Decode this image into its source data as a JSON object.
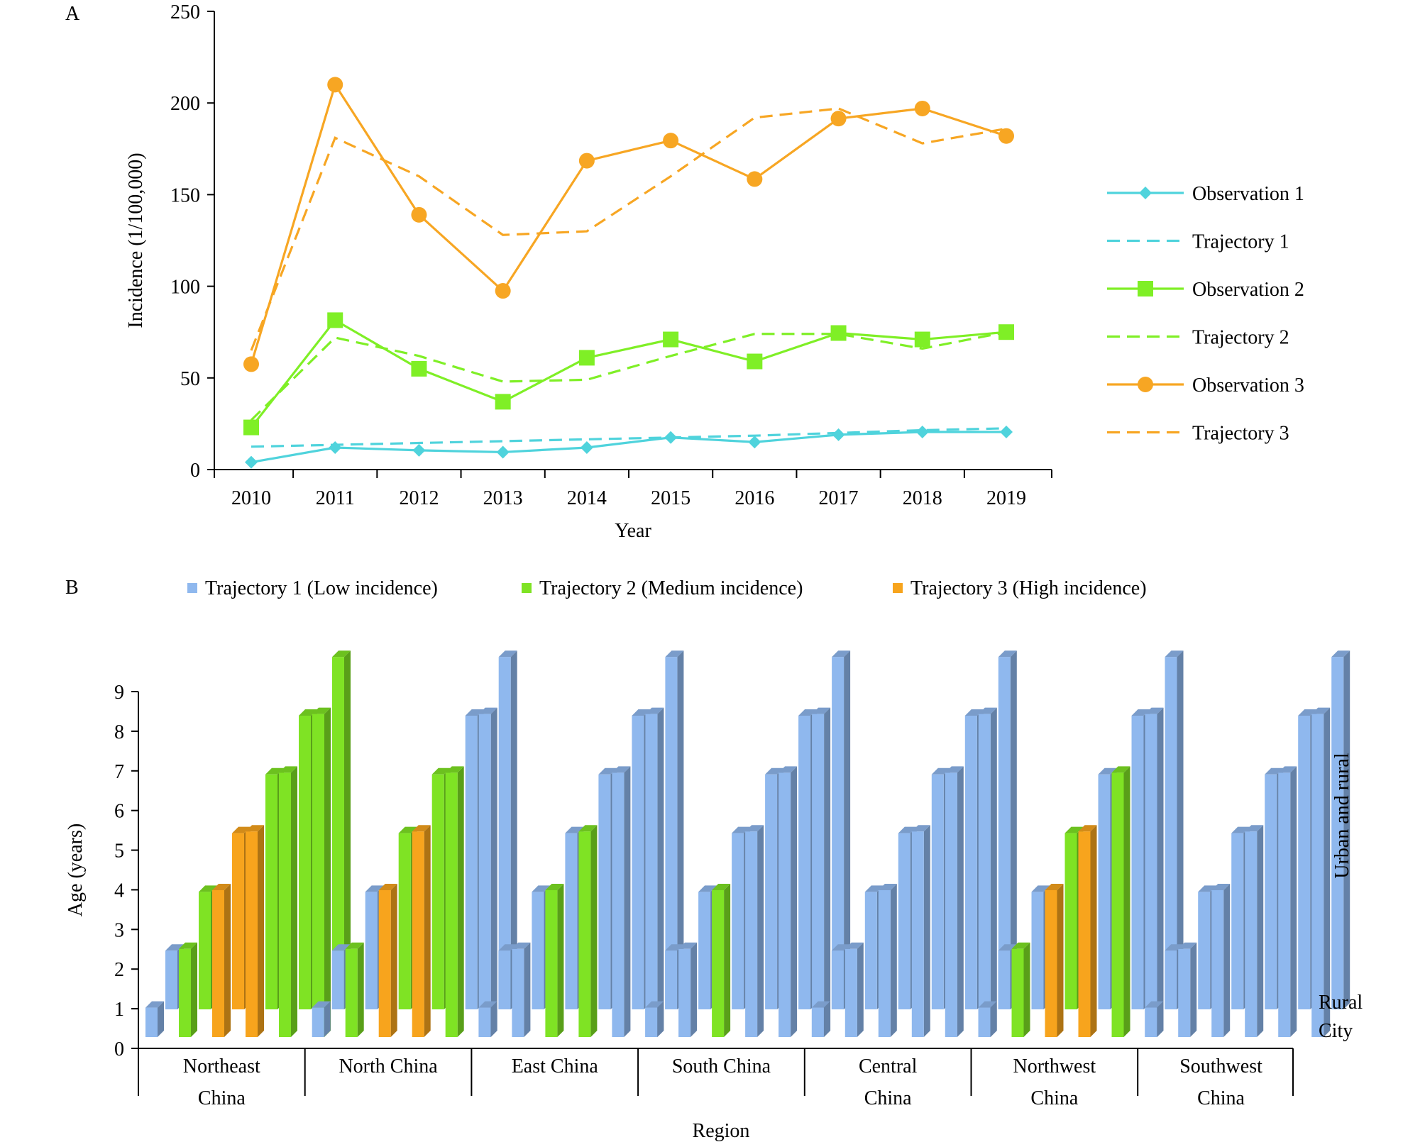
{
  "colors": {
    "trajectory1": "#4fd3dc",
    "trajectory2": "#7fef26",
    "trajectory3": "#f7a623",
    "bar_t1": "#8fb8ee",
    "bar_t2": "#7fe324",
    "bar_t3": "#f7a41d"
  },
  "chart_data": [
    {
      "panel": "A",
      "type": "line",
      "title": "",
      "xlabel": "Year",
      "ylabel": "Incidence (1/100,000)",
      "ylim": [
        0,
        250
      ],
      "yticks": [
        0,
        50,
        100,
        150,
        200,
        250
      ],
      "x": [
        "2010",
        "2011",
        "2012",
        "2013",
        "2014",
        "2015",
        "2016",
        "2017",
        "2018",
        "2019"
      ],
      "legend_position": "right",
      "series": [
        {
          "name": "Observation 1",
          "style": "solid",
          "marker": "diamond",
          "color": "#4fd3dc",
          "values": [
            4,
            12,
            10.5,
            9.5,
            12,
            17.5,
            15,
            19,
            20.5,
            20.5
          ]
        },
        {
          "name": "Trajectory 1",
          "style": "dashed",
          "marker": "none",
          "color": "#4fd3dc",
          "values": [
            12.5,
            13.5,
            14.5,
            15.5,
            16.5,
            17.5,
            18.5,
            20,
            21.5,
            22.5
          ]
        },
        {
          "name": "Observation 2",
          "style": "solid",
          "marker": "square",
          "color": "#7fef26",
          "values": [
            23,
            81.5,
            55,
            37,
            61,
            71,
            59,
            74.5,
            71,
            75
          ]
        },
        {
          "name": "Trajectory 2",
          "style": "dashed",
          "marker": "none",
          "color": "#7fef26",
          "values": [
            27,
            72,
            62,
            48,
            49,
            62,
            74,
            74,
            66,
            75
          ]
        },
        {
          "name": "Observation 3",
          "style": "solid",
          "marker": "circle",
          "color": "#f7a623",
          "values": [
            57.5,
            210,
            139,
            97.5,
            168.5,
            179.5,
            158.5,
            191.5,
            197,
            182
          ]
        },
        {
          "name": "Trajectory 3",
          "style": "dashed",
          "marker": "none",
          "color": "#f7a623",
          "values": [
            65,
            181,
            160,
            128,
            130,
            160,
            192,
            197,
            178,
            186
          ]
        }
      ]
    },
    {
      "panel": "B",
      "type": "bar",
      "title": "",
      "xlabel": "Region",
      "ylabel": "Age (years)",
      "ylim": [
        0,
        9
      ],
      "yticks": [
        0,
        1,
        2,
        3,
        4,
        5,
        6,
        7,
        8,
        9
      ],
      "depth_labels": [
        "Rural",
        "City"
      ],
      "side_label": "Urban and rural",
      "legend_position": "top",
      "legend": [
        {
          "name": "Trajectory 1 (Low incidence)",
          "key": "t1"
        },
        {
          "name": "Trajectory 2 (Medium incidence)",
          "key": "t2"
        },
        {
          "name": "Trajectory 3 (High incidence)",
          "key": "t3"
        }
      ],
      "age_groups_front": [
        1,
        3,
        5,
        7,
        9,
        11
      ],
      "age_groups_back": [
        2,
        4,
        6,
        8,
        10,
        12
      ],
      "categories": [
        {
          "label_lines": [
            "Northeast",
            "China"
          ],
          "city": [
            "t1",
            "t2",
            "t3",
            "t3",
            "t2",
            "t2"
          ],
          "rural": [
            "t1",
            "t2",
            "t3",
            "t2",
            "t2",
            "t2"
          ]
        },
        {
          "label_lines": [
            "North China"
          ],
          "city": [
            "t1",
            "t2",
            "t3",
            "t3",
            "t2",
            "t1"
          ],
          "rural": [
            "t1",
            "t1",
            "t2",
            "t2",
            "t1",
            "t1"
          ]
        },
        {
          "label_lines": [
            "East China"
          ],
          "city": [
            "t1",
            "t1",
            "t2",
            "t2",
            "t1",
            "t1"
          ],
          "rural": [
            "t1",
            "t1",
            "t1",
            "t1",
            "t1",
            "t1"
          ]
        },
        {
          "label_lines": [
            "South China"
          ],
          "city": [
            "t1",
            "t1",
            "t2",
            "t1",
            "t1",
            "t1"
          ],
          "rural": [
            "t1",
            "t1",
            "t1",
            "t1",
            "t1",
            "t1"
          ]
        },
        {
          "label_lines": [
            "Central",
            "China"
          ],
          "city": [
            "t1",
            "t1",
            "t1",
            "t1",
            "t1",
            "t1"
          ],
          "rural": [
            "t1",
            "t1",
            "t1",
            "t1",
            "t1",
            "t1"
          ]
        },
        {
          "label_lines": [
            "Northwest",
            "China"
          ],
          "city": [
            "t1",
            "t2",
            "t3",
            "t3",
            "t2",
            "t1"
          ],
          "rural": [
            "t1",
            "t1",
            "t2",
            "t1",
            "t1",
            "t1"
          ]
        },
        {
          "label_lines": [
            "Southwest",
            "China"
          ],
          "city": [
            "t1",
            "t1",
            "t1",
            "t1",
            "t1",
            "t1"
          ],
          "rural": [
            "t1",
            "t1",
            "t1",
            "t1",
            "t1",
            "t1"
          ]
        }
      ]
    }
  ],
  "panel_labels": {
    "a": "A",
    "b": "B"
  }
}
